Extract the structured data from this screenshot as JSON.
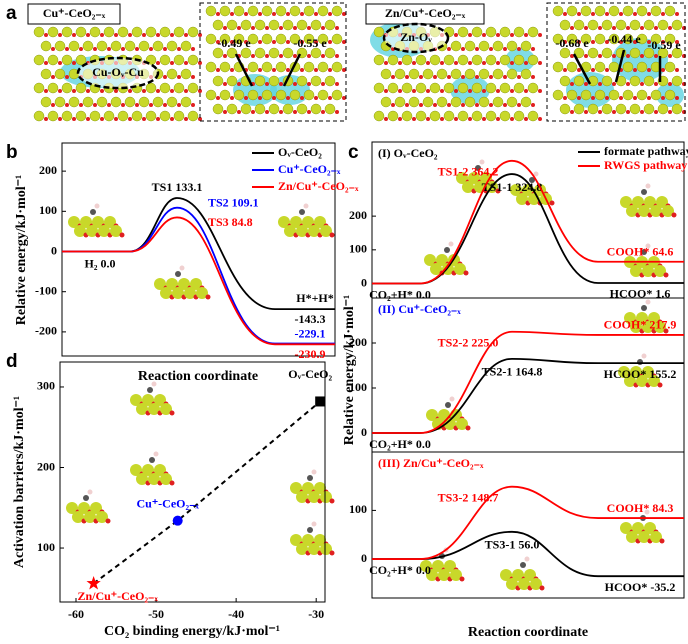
{
  "panel_labels": [
    "a",
    "b",
    "c",
    "d"
  ],
  "panel_a": {
    "left": {
      "title": "Cu⁺-CeO₂₋ₓ",
      "site": "Cu-Oᵥ-Cu",
      "charges": [
        "-0.49 e",
        "-0.55 e"
      ]
    },
    "right": {
      "title": "Zn/Cu⁺-CeO₂₋ₓ",
      "site": "Zn-Oᵥ",
      "charges": [
        "-0.68 e",
        "-0.44 e",
        "-0.59 e"
      ]
    }
  },
  "chart_data": [
    {
      "type": "energy-profile",
      "ylabel": "Relative energy/kJ·mol⁻¹",
      "xlabel": "Reaction coordinate",
      "ylim": [
        -260,
        270
      ],
      "yticks": [
        -200,
        -100,
        0,
        100,
        200
      ],
      "legend": "upper right",
      "annotations": [
        "H*+H*"
      ],
      "series": [
        {
          "name": "Oᵥ-CeO₂",
          "color": "#000000",
          "values": [
            0.0,
            133.1,
            -143.3
          ],
          "value_labels": [
            "H₂ 0.0",
            "TS1 133.1",
            "-143.3"
          ]
        },
        {
          "name": "Cu⁺-CeO₂₋ₓ",
          "color": "#0000ff",
          "values": [
            0.0,
            109.1,
            -229.1
          ],
          "value_labels": [
            null,
            "TS2 109.1",
            "-229.1"
          ]
        },
        {
          "name": "Zn/Cu⁺-CeO₂₋ₓ",
          "color": "#ff0000",
          "values": [
            0.0,
            84.8,
            -230.9
          ],
          "value_labels": [
            null,
            "TS3 84.8",
            "-230.9"
          ]
        }
      ]
    },
    {
      "type": "energy-profile",
      "title": "(I) Oᵥ-CeO₂",
      "title_color": "#000000",
      "ylabel": "Relative energy/kJ·mol⁻¹",
      "xlabel": "Reaction coordinate",
      "ylim": [
        -40,
        420
      ],
      "yticks": [
        0,
        100,
        200
      ],
      "legend": "upper right",
      "series": [
        {
          "name": "formate pathway",
          "color": "#000000",
          "values": [
            0.0,
            324.8,
            1.6
          ],
          "value_labels": [
            "CO₂+H* 0.0",
            "TS1-1 324.8",
            "HCOO* 1.6"
          ]
        },
        {
          "name": "RWGS pathway",
          "color": "#ff0000",
          "values": [
            0.0,
            364.2,
            64.6
          ],
          "value_labels": [
            null,
            "TS1-2 364.2",
            "COOH* 64.6"
          ]
        }
      ]
    },
    {
      "type": "energy-profile",
      "title": "(II) Cu⁺-CeO₂₋ₓ",
      "title_color": "#0000ff",
      "ylim": [
        -40,
        300
      ],
      "yticks": [
        0,
        100,
        200
      ],
      "series": [
        {
          "color": "#000000",
          "values": [
            0.0,
            164.8,
            155.2
          ],
          "value_labels": [
            "CO₂+H* 0.0",
            "TS2-1 164.8",
            "HCOO* 155.2"
          ]
        },
        {
          "color": "#ff0000",
          "values": [
            0.0,
            225.0,
            217.9
          ],
          "value_labels": [
            null,
            "TS2-2 225.0",
            "COOH* 217.9"
          ]
        }
      ]
    },
    {
      "type": "energy-profile",
      "title": "(III) Zn/Cu⁺-CeO₂₋ₓ",
      "title_color": "#ff0000",
      "ylim": [
        -80,
        220
      ],
      "yticks": [
        0,
        100
      ],
      "series": [
        {
          "color": "#000000",
          "values": [
            0.0,
            56.0,
            -35.2
          ],
          "value_labels": [
            "CO₂+H* 0.0",
            "TS3-1 56.0",
            "HCOO* -35.2"
          ]
        },
        {
          "color": "#ff0000",
          "values": [
            0.0,
            148.7,
            84.3
          ],
          "value_labels": [
            null,
            "TS3-2 148.7",
            "COOH* 84.3"
          ]
        }
      ]
    },
    {
      "type": "scatter",
      "xlabel": "CO₂ binding energy/kJ·mol⁻¹",
      "ylabel": "Activation barriers/kJ·mol⁻¹",
      "xlim": [
        -62,
        -28.9
      ],
      "ylim": [
        33,
        331
      ],
      "xticks": [
        -60,
        -50,
        -40,
        -30
      ],
      "yticks": [
        100,
        200,
        300
      ],
      "trend_line": "dashed",
      "series": [
        {
          "name": "Zn/Cu⁺-CeO₂₋ₓ",
          "color": "#ff0000",
          "marker": "star",
          "x": [
            -57.8
          ],
          "values": [
            56
          ]
        },
        {
          "name": "Cu⁺-CeO₂₋ₓ",
          "color": "#0000ff",
          "marker": "circle",
          "x": [
            -47.3
          ],
          "values": [
            134
          ]
        },
        {
          "name": "Oᵥ-CeO₂",
          "color": "#000000",
          "marker": "square",
          "x": [
            -29.5
          ],
          "values": [
            282
          ]
        }
      ]
    }
  ]
}
